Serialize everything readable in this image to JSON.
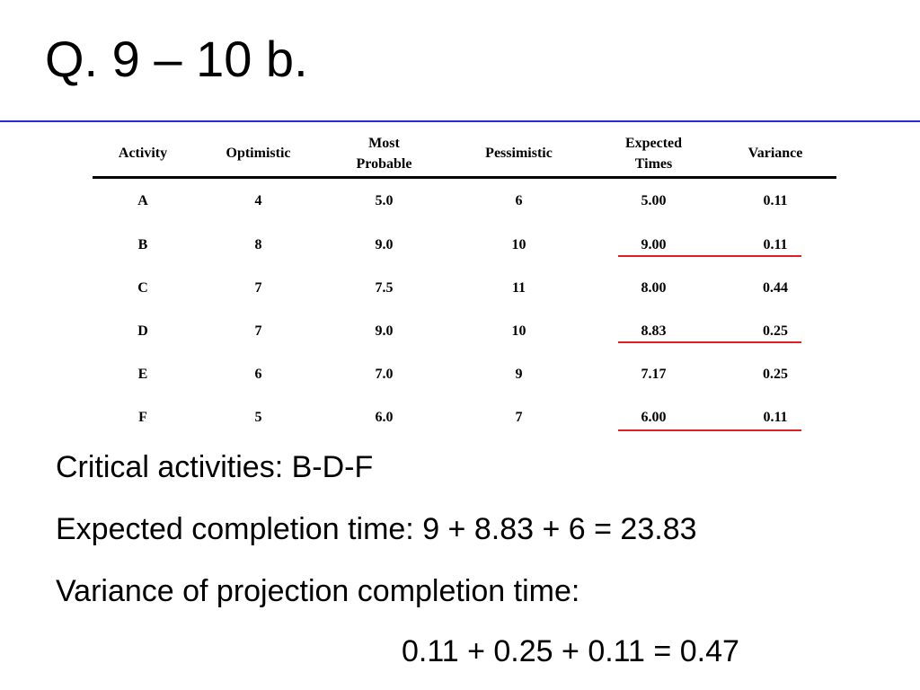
{
  "slide": {
    "title": "Q. 9 – 10 b."
  },
  "table": {
    "headers": {
      "activity": "Activity",
      "optimistic": "Optimistic",
      "most_probable_1": "Most",
      "most_probable_2": "Probable",
      "pessimistic": "Pessimistic",
      "expected_1": "Expected",
      "expected_2": "Times",
      "variance": "Variance"
    },
    "rows": [
      {
        "activity": "A",
        "optimistic": "4",
        "most_probable": "5.0",
        "pessimistic": "6",
        "expected": "5.00",
        "variance": "0.11"
      },
      {
        "activity": "B",
        "optimistic": "8",
        "most_probable": "9.0",
        "pessimistic": "10",
        "expected": "9.00",
        "variance": "0.11"
      },
      {
        "activity": "C",
        "optimistic": "7",
        "most_probable": "7.5",
        "pessimistic": "11",
        "expected": "8.00",
        "variance": "0.44"
      },
      {
        "activity": "D",
        "optimistic": "7",
        "most_probable": "9.0",
        "pessimistic": "10",
        "expected": "8.83",
        "variance": "0.25"
      },
      {
        "activity": "E",
        "optimistic": "6",
        "most_probable": "7.0",
        "pessimistic": "9",
        "expected": "7.17",
        "variance": "0.25"
      },
      {
        "activity": "F",
        "optimistic": "5",
        "most_probable": "6.0",
        "pessimistic": "7",
        "expected": "6.00",
        "variance": "0.11"
      }
    ],
    "critical_highlight_color": "#e02020"
  },
  "text": {
    "critical": "Critical activities: B-D-F",
    "expected": "Expected completion time: 9 + 8.83 + 6 = 23.83",
    "variance_label": "Variance of projection completion time:",
    "variance_sum": "0.11 + 0.25 + 0.11 = 0.47"
  }
}
